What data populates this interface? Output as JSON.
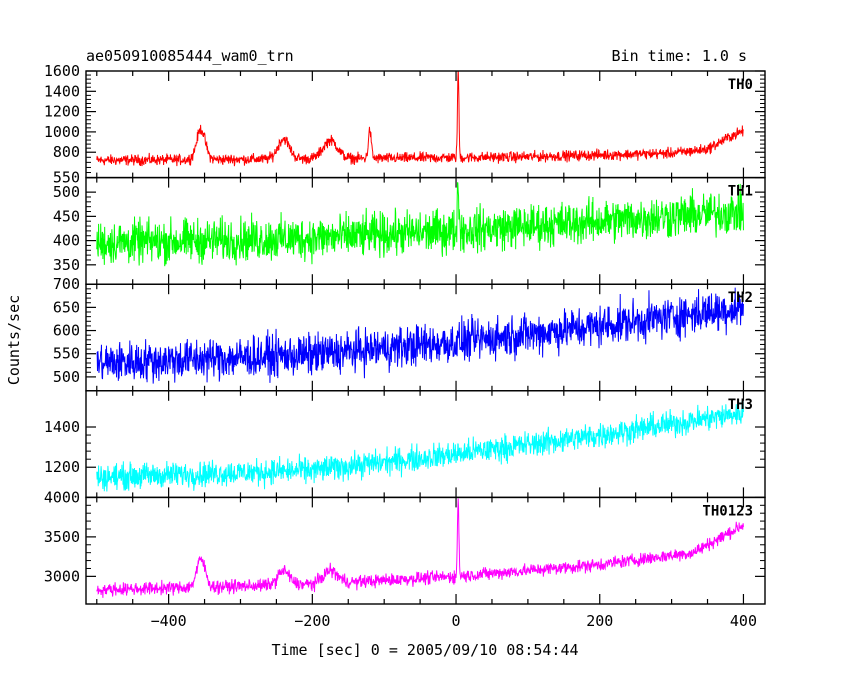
{
  "header": {
    "title": "ae050910085444_wam0_trn",
    "bin_time": "Bin time: 1.0 s"
  },
  "chart_data": {
    "type": "line",
    "title": "ae050910085444_wam0_trn",
    "xlabel": "Time [sec] 0 = 2005/09/10 08:54:44",
    "ylabel": "Counts/sec",
    "xlim": [
      -515,
      430
    ],
    "xticks": [
      -400,
      -200,
      0,
      200,
      400
    ],
    "xtick_labels": [
      "−400",
      "−200",
      "0",
      "200",
      "400"
    ],
    "x_start": -500,
    "x_end": 400,
    "legend": "per-panel label, top-right",
    "grid": false,
    "panels": [
      {
        "name": "TH0",
        "color": "#ff0000",
        "ylim": [
          550,
          1600
        ],
        "yticks": [
          550,
          800,
          1000,
          1200,
          1400,
          1600
        ],
        "ytick_labels": [
          "550",
          "800",
          "1000",
          "1200",
          "1400",
          "1600"
        ],
        "baseline": [
          [
            -500,
            720
          ],
          [
            -300,
            730
          ],
          [
            -100,
            740
          ],
          [
            100,
            755
          ],
          [
            300,
            790
          ],
          [
            350,
            830
          ],
          [
            380,
            950
          ],
          [
            400,
            1010
          ]
        ],
        "noise": 45,
        "features": [
          {
            "x": -355,
            "height": 300,
            "width": 6
          },
          {
            "x": -240,
            "height": 200,
            "width": 8
          },
          {
            "x": -175,
            "height": 180,
            "width": 10
          },
          {
            "x": -120,
            "height": 280,
            "width": 2
          },
          {
            "x": 3,
            "height": 870,
            "width": 1
          }
        ]
      },
      {
        "name": "TH1",
        "color": "#00ff00",
        "ylim": [
          310,
          530
        ],
        "yticks": [
          350,
          400,
          450,
          500
        ],
        "ytick_labels": [
          "350",
          "400",
          "450",
          "500"
        ],
        "baseline": [
          [
            -500,
            395
          ],
          [
            -200,
            405
          ],
          [
            0,
            420
          ],
          [
            200,
            440
          ],
          [
            400,
            460
          ]
        ],
        "noise": 38,
        "features": [
          {
            "x": 3,
            "height": 110,
            "width": 1
          }
        ]
      },
      {
        "name": "TH2",
        "color": "#0000ff",
        "ylim": [
          470,
          700
        ],
        "yticks": [
          500,
          550,
          600,
          650,
          700
        ],
        "ytick_labels": [
          "500",
          "550",
          "600",
          "650",
          "700"
        ],
        "baseline": [
          [
            -500,
            530
          ],
          [
            -200,
            548
          ],
          [
            0,
            575
          ],
          [
            200,
            610
          ],
          [
            400,
            650
          ]
        ],
        "noise": 38,
        "features": []
      },
      {
        "name": "TH3",
        "color": "#00ffff",
        "ylim": [
          1050,
          1580
        ],
        "yticks": [
          1200,
          1400
        ],
        "ytick_labels": [
          "1200",
          "1400"
        ],
        "baseline": [
          [
            -500,
            1150
          ],
          [
            -200,
            1185
          ],
          [
            0,
            1265
          ],
          [
            200,
            1360
          ],
          [
            400,
            1470
          ]
        ],
        "noise": 55,
        "features": []
      },
      {
        "name": "TH0123",
        "color": "#ff00ff",
        "ylim": [
          2650,
          4000
        ],
        "yticks": [
          3000,
          3500,
          4000
        ],
        "ytick_labels": [
          "3000",
          "3500",
          "4000"
        ],
        "baseline": [
          [
            -500,
            2830
          ],
          [
            -200,
            2900
          ],
          [
            0,
            3000
          ],
          [
            200,
            3150
          ],
          [
            330,
            3300
          ],
          [
            400,
            3650
          ]
        ],
        "noise": 70,
        "features": [
          {
            "x": -355,
            "height": 350,
            "width": 6
          },
          {
            "x": -240,
            "height": 180,
            "width": 8
          },
          {
            "x": -175,
            "height": 160,
            "width": 10
          },
          {
            "x": 3,
            "height": 1000,
            "width": 1
          }
        ]
      }
    ]
  }
}
